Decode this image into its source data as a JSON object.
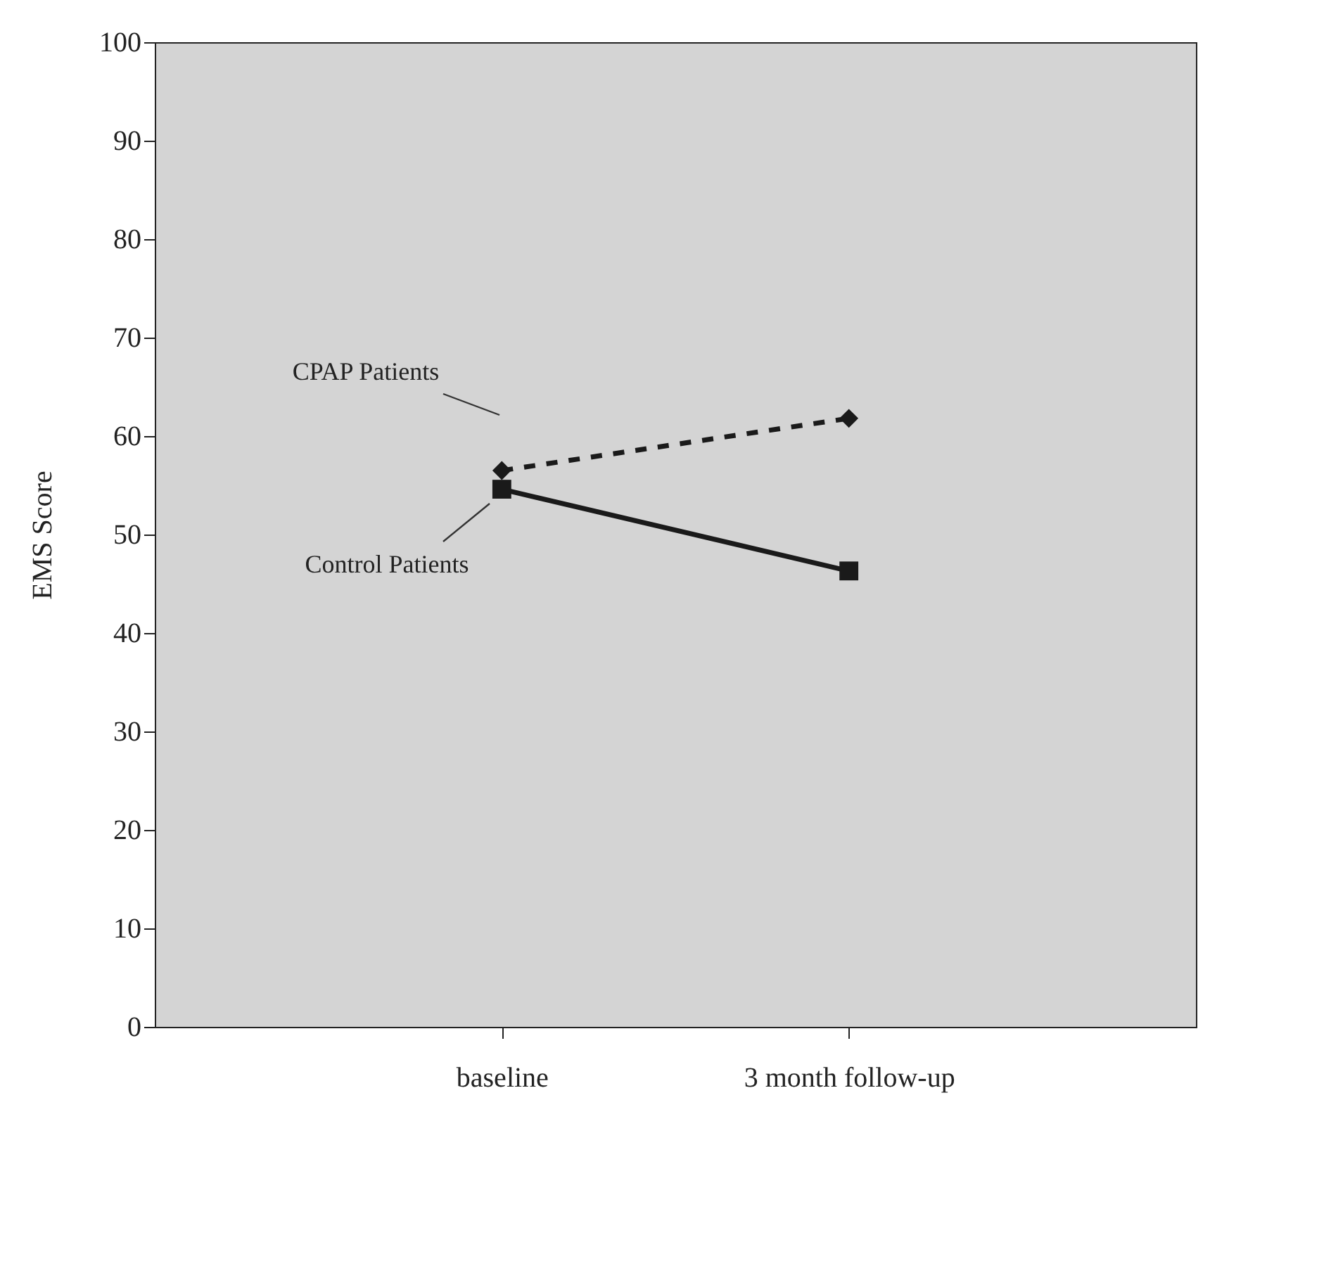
{
  "chart_data": {
    "type": "line",
    "ylabel": "EMS Score",
    "categories": [
      "baseline",
      "3 month follow-up"
    ],
    "series": [
      {
        "name": "CPAP Patients",
        "color": "#1a1a1a",
        "values": [
          56.5,
          61.8
        ],
        "marker": "diamond",
        "line_style": "dashed"
      },
      {
        "name": "Control Patients",
        "color": "#1a1a1a",
        "values": [
          54.6,
          46.3
        ],
        "marker": "square",
        "line_style": "solid"
      }
    ],
    "ylim": [
      0,
      100
    ],
    "yticks": [
      0,
      10,
      20,
      30,
      40,
      50,
      60,
      70,
      80,
      90,
      100
    ]
  }
}
